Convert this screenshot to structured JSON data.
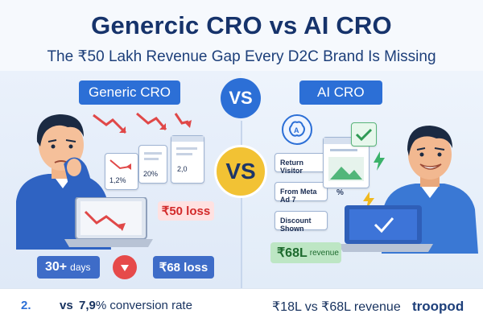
{
  "header": {
    "title": "Genercic CRO vs AI CRO",
    "subtitle": "The ₹50 Lakh Revenue Gap Every D2C Brand Is Missing"
  },
  "left": {
    "label": "Generic CRO",
    "card_values": [
      "1,2%",
      "20%",
      "2,0"
    ],
    "loss_chip": "₹50 loss",
    "days_value": "30+",
    "days_unit": "days",
    "bottom_loss": "₹68 loss"
  },
  "center": {
    "vs_top": "VS",
    "vs_mid": "VS"
  },
  "right": {
    "label": "AI CRO",
    "cards": [
      "Return Visitor",
      "From Meta Ad 7",
      "Discount Shown"
    ],
    "percent_symbol": "%",
    "revenue_value": "₹68L",
    "revenue_unit": "revenue"
  },
  "footer": {
    "left_number": "2.",
    "vs_word": "vs",
    "conversion_value": "7,9",
    "conversion_unit": "% conversion rate",
    "right_text": "₹18L vs ₹68L revenue",
    "brand": "troopod"
  },
  "colors": {
    "title": "#16336b",
    "accent_blue": "#2c6fd6",
    "loss_red": "#d22a2a",
    "vs_yellow": "#f2c234",
    "revenue_green": "#1d6a2e"
  }
}
